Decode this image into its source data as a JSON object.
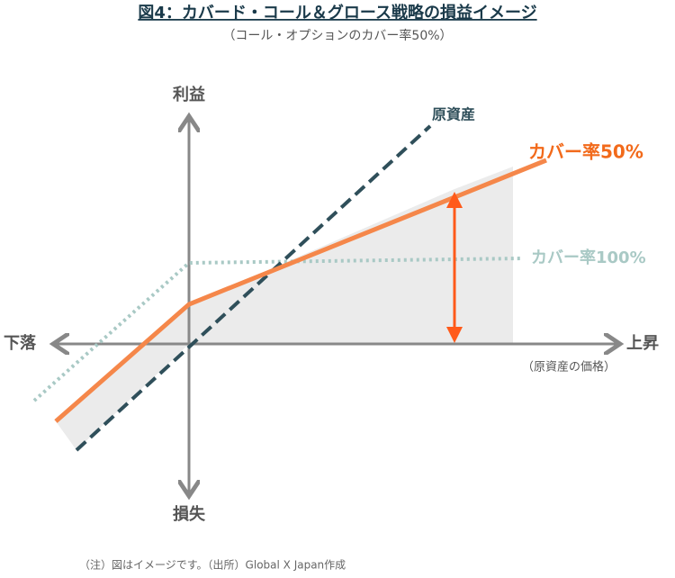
{
  "header": {
    "title": "図4：カバード・コール＆グロース戦略の損益イメージ",
    "subtitle": "（コール・オプションのカバー率50%）"
  },
  "axes": {
    "up": "利益",
    "down": "損失",
    "left": "下落",
    "right": "上昇",
    "right_note": "（原資産の価格）"
  },
  "lines": [
    {
      "label": "原資産"
    },
    {
      "label": "カバー率50%"
    },
    {
      "label": "カバー率100%"
    }
  ],
  "footnote": "（注）図はイメージです。（出所）Global X Japan作成"
}
